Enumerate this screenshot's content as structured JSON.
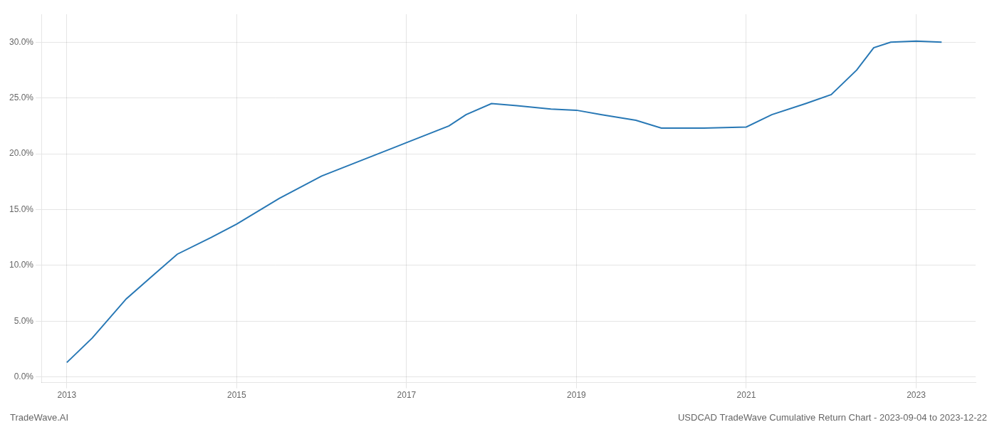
{
  "chart_data": {
    "type": "line",
    "annotations": [
      "TradeWave.AI",
      "USDCAD TradeWave Cumulative Return Chart - 2023-09-04 to 2023-12-22"
    ],
    "x": [
      2013.0,
      2013.3,
      2013.7,
      2014.0,
      2014.3,
      2014.7,
      2015.0,
      2015.5,
      2016.0,
      2016.5,
      2016.9,
      2017.0,
      2017.5,
      2017.7,
      2018.0,
      2018.3,
      2018.7,
      2019.0,
      2019.3,
      2019.7,
      2020.0,
      2020.5,
      2021.0,
      2021.3,
      2021.7,
      2022.0,
      2022.3,
      2022.5,
      2022.7,
      2023.0,
      2023.3
    ],
    "values": [
      1.3,
      3.5,
      7.0,
      9.0,
      11.0,
      12.5,
      13.7,
      16.0,
      18.0,
      19.5,
      20.7,
      21.0,
      22.5,
      23.5,
      24.5,
      24.3,
      24.0,
      23.9,
      23.5,
      23.0,
      22.3,
      22.3,
      22.4,
      23.5,
      24.5,
      25.3,
      27.5,
      29.5,
      30.0,
      30.1,
      30.0
    ],
    "color": "#2878b5",
    "xlim": [
      2012.7,
      2023.7
    ],
    "xticks": [
      2013,
      2015,
      2017,
      2019,
      2021,
      2023
    ],
    "ylim": [
      -0.5,
      32.5
    ],
    "yticks": [
      {
        "value": 0,
        "label": "0.0%"
      },
      {
        "value": 5,
        "label": "5.0%"
      },
      {
        "value": 10,
        "label": "10.0%"
      },
      {
        "value": 15,
        "label": "15.0%"
      },
      {
        "value": 20,
        "label": "20.0%"
      },
      {
        "value": 25,
        "label": "25.0%"
      },
      {
        "value": 30,
        "label": "30.0%"
      }
    ],
    "grid": true
  }
}
